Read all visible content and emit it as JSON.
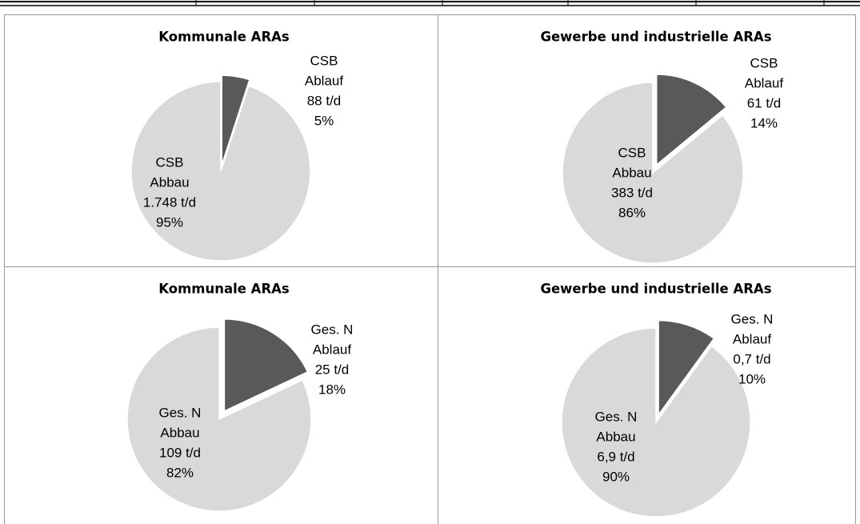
{
  "chart_data": [
    {
      "type": "pie",
      "title": "Kommunale ARAs",
      "categories": [
        [
          "CSB",
          "Ablauf"
        ],
        [
          "CSB",
          "Abbau"
        ]
      ],
      "values": [
        5,
        95
      ],
      "value_labels": [
        "5%",
        "95%"
      ],
      "amounts": [
        88,
        1748
      ],
      "amount_labels": [
        "88 t/d",
        "1.748 t/d"
      ],
      "colors": [
        "#595959",
        "#d9d9d9"
      ]
    },
    {
      "type": "pie",
      "title": "Gewerbe und industrielle ARAs",
      "categories": [
        [
          "CSB",
          "Ablauf"
        ],
        [
          "CSB",
          "Abbau"
        ]
      ],
      "values": [
        14,
        86
      ],
      "value_labels": [
        "14%",
        "86%"
      ],
      "amounts": [
        61,
        383
      ],
      "amount_labels": [
        "61 t/d",
        "383 t/d"
      ],
      "colors": [
        "#595959",
        "#d9d9d9"
      ]
    },
    {
      "type": "pie",
      "title": "Kommunale ARAs",
      "categories": [
        [
          "Ges. N",
          "Ablauf"
        ],
        [
          "Ges. N",
          "Abbau"
        ]
      ],
      "values": [
        18,
        82
      ],
      "value_labels": [
        "18%",
        "82%"
      ],
      "amounts": [
        25,
        109
      ],
      "amount_labels": [
        "25 t/d",
        "109 t/d"
      ],
      "colors": [
        "#595959",
        "#d9d9d9"
      ]
    },
    {
      "type": "pie",
      "title": "Gewerbe und industrielle ARAs",
      "categories": [
        [
          "Ges. N",
          "Ablauf"
        ],
        [
          "Ges. N",
          "Abbau"
        ]
      ],
      "values": [
        10,
        90
      ],
      "value_labels": [
        "10%",
        "90%"
      ],
      "amounts": [
        0.7,
        6.9
      ],
      "amount_labels": [
        "0,7 t/d",
        "6,9 t/d"
      ],
      "colors": [
        "#595959",
        "#d9d9d9"
      ]
    }
  ]
}
